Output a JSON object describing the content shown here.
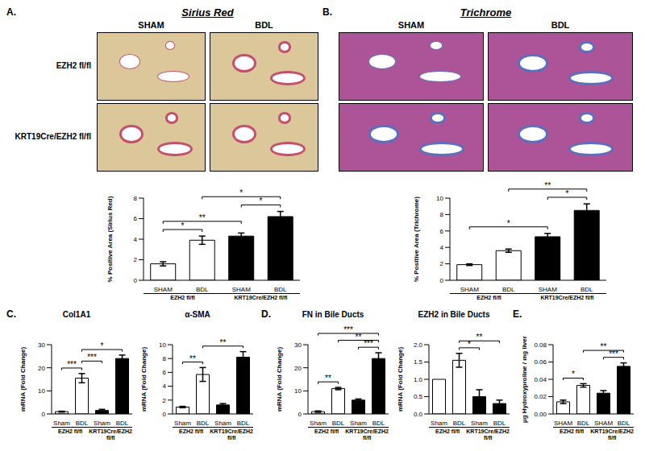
{
  "figure": {
    "sections": [
      {
        "letter": "A.",
        "title": "Sirius Red"
      },
      {
        "letter": "B.",
        "title": "Trichrome"
      },
      {
        "letter": "C."
      },
      {
        "letter": "D."
      },
      {
        "letter": "E."
      }
    ],
    "columns": [
      "SHAM",
      "BDL"
    ],
    "rows": [
      "EZH2 fl/fl",
      "KRT19Cre/EZH2 fl/fl"
    ]
  },
  "chart_data": [
    {
      "type": "bar",
      "y_label": "% Positive Area (Sirius Red)",
      "categories": [
        "SHAM",
        "BDL",
        "SHAM",
        "BDL"
      ],
      "groups": [
        "EZH2 fl/fl",
        "KRT19Cre/EZH2 fl/fl"
      ],
      "values": [
        1.6,
        3.9,
        4.3,
        6.2
      ],
      "errors": [
        0.2,
        0.4,
        0.3,
        0.5
      ],
      "colors": [
        "#ffffff",
        "#ffffff",
        "#000000",
        "#000000"
      ],
      "ylim": [
        0,
        8
      ],
      "yticks": [
        0,
        2,
        4,
        6,
        8
      ],
      "significance": [
        {
          "from": 0,
          "to": 1,
          "label": "*"
        },
        {
          "from": 0,
          "to": 2,
          "label": "**"
        },
        {
          "from": 2,
          "to": 3,
          "label": "*"
        },
        {
          "from": 1,
          "to": 3,
          "label": "*"
        }
      ]
    },
    {
      "type": "bar",
      "y_label": "% Positive Area (Trichrome)",
      "categories": [
        "SHAM",
        "BDL",
        "SHAM",
        "BDL"
      ],
      "groups": [
        "EZH2 fl/fl",
        "KRT19Cre/EZH2 fl/fl"
      ],
      "values": [
        1.9,
        3.6,
        5.3,
        8.5
      ],
      "errors": [
        0.1,
        0.2,
        0.4,
        0.8
      ],
      "colors": [
        "#ffffff",
        "#ffffff",
        "#000000",
        "#000000"
      ],
      "ylim": [
        0,
        10
      ],
      "yticks": [
        0,
        2,
        4,
        6,
        8,
        10
      ],
      "significance": [
        {
          "from": 0,
          "to": 2,
          "label": "*"
        },
        {
          "from": 2,
          "to": 3,
          "label": "*"
        },
        {
          "from": 1,
          "to": 3,
          "label": "**"
        }
      ]
    },
    {
      "type": "bar",
      "title": "Col1A1",
      "y_label": "mRNA (Fold Change)",
      "categories": [
        "Sham",
        "BDL",
        "Sham",
        "BDL"
      ],
      "groups": [
        "EZH2 fl/fl",
        "KRT19Cre/EZH2 fl/fl"
      ],
      "values": [
        1,
        15.5,
        1.5,
        24
      ],
      "errors": [
        0.2,
        2,
        0.5,
        1.5
      ],
      "colors": [
        "#ffffff",
        "#ffffff",
        "#000000",
        "#000000"
      ],
      "ylim": [
        0,
        30
      ],
      "yticks": [
        0,
        10,
        20,
        30
      ],
      "significance": [
        {
          "from": 0,
          "to": 1,
          "label": "***"
        },
        {
          "from": 1,
          "to": 2,
          "label": "***"
        },
        {
          "from": 1,
          "to": 3,
          "label": "*"
        }
      ]
    },
    {
      "type": "bar",
      "title": "α-SMA",
      "y_label": "mRNA (Fold Change)",
      "categories": [
        "Sham",
        "BDL",
        "Sham",
        "BDL"
      ],
      "groups": [
        "EZH2 fl/fl",
        "KRT19Cre/EZH2 fl/fl"
      ],
      "values": [
        1,
        5.7,
        1.3,
        8.2
      ],
      "errors": [
        0.1,
        1,
        0.2,
        0.8
      ],
      "colors": [
        "#ffffff",
        "#ffffff",
        "#000000",
        "#000000"
      ],
      "ylim": [
        0,
        10
      ],
      "yticks": [
        0,
        2,
        4,
        6,
        8,
        10
      ],
      "significance": [
        {
          "from": 0,
          "to": 1,
          "label": "**"
        },
        {
          "from": 1,
          "to": 3,
          "label": "**"
        }
      ]
    },
    {
      "type": "bar",
      "title": "FN in Bile Ducts",
      "y_label": "mRNA (Fold Change)",
      "categories": [
        "Sham",
        "BDL",
        "Sham",
        "BDL"
      ],
      "groups": [
        "EZH2 fl/fl",
        "KRT19Cre/EZH2 fl/fl"
      ],
      "values": [
        1,
        11,
        6,
        24
      ],
      "errors": [
        0.3,
        0.5,
        0.5,
        2.5
      ],
      "colors": [
        "#ffffff",
        "#ffffff",
        "#000000",
        "#000000"
      ],
      "ylim": [
        0,
        30
      ],
      "yticks": [
        0,
        10,
        20,
        30
      ],
      "significance": [
        {
          "from": 0,
          "to": 1,
          "label": "**"
        },
        {
          "from": 2,
          "to": 3,
          "label": "***"
        },
        {
          "from": 1,
          "to": 3,
          "label": "**"
        },
        {
          "from": 0,
          "to": 3,
          "label": "***"
        }
      ]
    },
    {
      "type": "bar",
      "title": "EZH2 in Bile Ducts",
      "y_label": "mRNA (Fold Change)",
      "categories": [
        "Sham",
        "BDL",
        "Sham",
        "BDL"
      ],
      "groups": [
        "EZH2 fl/fl",
        "KRT19Cre/EZH2 fl/fl"
      ],
      "values": [
        1,
        1.55,
        0.5,
        0.3
      ],
      "errors": [
        0,
        0.2,
        0.2,
        0.1
      ],
      "colors": [
        "#ffffff",
        "#ffffff",
        "#000000",
        "#000000"
      ],
      "ylim": [
        0,
        2
      ],
      "yticks": [
        {
          "value": 0,
          "label": "0.0"
        },
        0.5,
        {
          "value": 1,
          "label": "1.0"
        },
        1.5,
        {
          "value": 2,
          "label": "2.0"
        }
      ],
      "significance": [
        {
          "from": 1,
          "to": 2,
          "label": "*"
        },
        {
          "from": 1,
          "to": 3,
          "label": "**"
        }
      ]
    },
    {
      "type": "bar",
      "y_label": "µg Hydroxyproline / mg liver",
      "categories": [
        "SHAM",
        "BDL",
        "SHAM",
        "BDL"
      ],
      "groups": [
        "EZH2 fl/fl",
        "KRT19Cre/EZH2 fl/fl"
      ],
      "values": [
        0.014,
        0.033,
        0.024,
        0.055
      ],
      "errors": [
        0.002,
        0.002,
        0.003,
        0.004
      ],
      "colors": [
        "#ffffff",
        "#ffffff",
        "#000000",
        "#000000"
      ],
      "ylim": [
        0,
        0.08
      ],
      "yticks": [
        {
          "value": 0,
          "label": "0.00"
        },
        0.02,
        0.04,
        0.06,
        0.08
      ],
      "significance": [
        {
          "from": 0,
          "to": 1,
          "label": "*"
        },
        {
          "from": 2,
          "to": 3,
          "label": "***"
        },
        {
          "from": 1,
          "to": 3,
          "label": "**"
        }
      ]
    }
  ]
}
